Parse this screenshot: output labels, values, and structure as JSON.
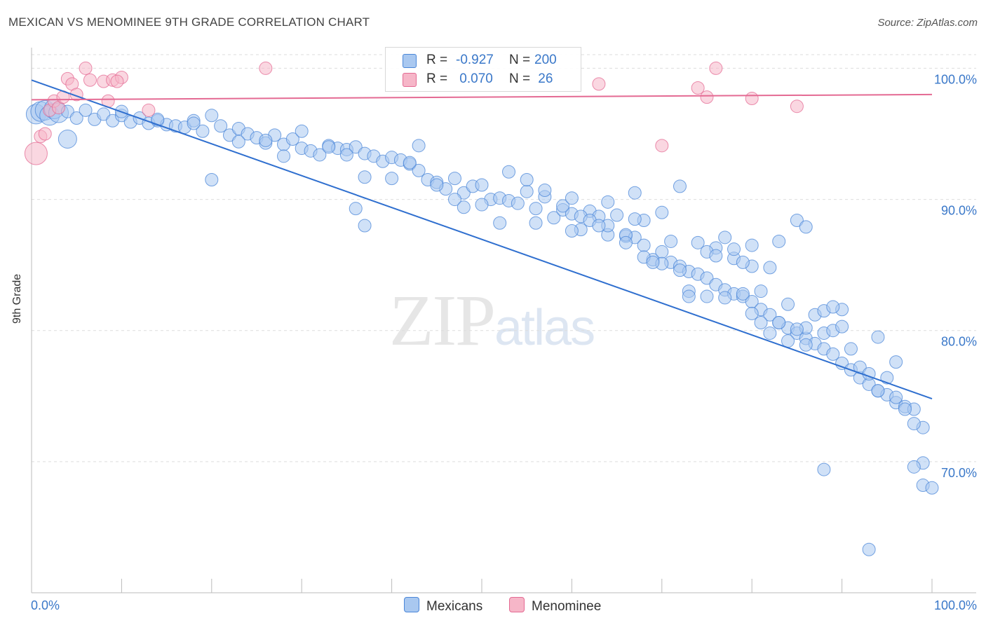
{
  "title": "MEXICAN VS MENOMINEE 9TH GRADE CORRELATION CHART",
  "source": "Source: ZipAtlas.com",
  "watermark": {
    "zip": "ZIP",
    "atlas": "atlas"
  },
  "legend_top": [
    {
      "r_label": "R = ",
      "r_value": "-0.927",
      "n_label": "N = ",
      "n_value": "200",
      "color": "#a9c8f0"
    },
    {
      "r_label": "R = ",
      "r_value": " 0.070",
      "n_label": "N = ",
      "n_value": " 26",
      "color": "#f6b6c8"
    }
  ],
  "chart_data": {
    "type": "scatter",
    "title": "MEXICAN VS MENOMINEE 9TH GRADE CORRELATION CHART",
    "xlabel": "",
    "ylabel": "9th Grade",
    "xlim": [
      0,
      100
    ],
    "ylim": [
      60,
      102
    ],
    "x_ticks": [
      "0.0%",
      "100.0%"
    ],
    "y_ticks": [
      {
        "value": 100,
        "label": "100.0%"
      },
      {
        "value": 90,
        "label": "90.0%"
      },
      {
        "value": 80,
        "label": "80.0%"
      },
      {
        "value": 70,
        "label": "70.0%"
      }
    ],
    "grid": true,
    "legend_position": "bottom-center",
    "series": [
      {
        "name": "Mexicans",
        "color": "#4a86d8",
        "fill": "#a9c8f0",
        "trend": {
          "x": [
            0,
            100
          ],
          "y": [
            99.1,
            74.8
          ]
        },
        "points": [
          [
            0.5,
            96.5
          ],
          [
            1,
            96.7
          ],
          [
            1.5,
            96.8
          ],
          [
            2,
            96.4
          ],
          [
            2.5,
            96.9
          ],
          [
            3,
            96.6
          ],
          [
            4,
            96.7
          ],
          [
            5,
            96.2
          ],
          [
            6,
            96.8
          ],
          [
            7,
            96.1
          ],
          [
            8,
            96.5
          ],
          [
            9,
            96.0
          ],
          [
            10,
            96.4
          ],
          [
            11,
            95.9
          ],
          [
            12,
            96.2
          ],
          [
            13,
            95.8
          ],
          [
            14,
            96.0
          ],
          [
            15,
            95.7
          ],
          [
            16,
            95.6
          ],
          [
            17,
            95.5
          ],
          [
            18,
            96.0
          ],
          [
            19,
            95.2
          ],
          [
            20,
            96.4
          ],
          [
            21,
            95.6
          ],
          [
            22,
            94.9
          ],
          [
            23,
            95.4
          ],
          [
            24,
            95.0
          ],
          [
            25,
            94.7
          ],
          [
            26,
            94.3
          ],
          [
            27,
            94.9
          ],
          [
            28,
            94.2
          ],
          [
            29,
            94.6
          ],
          [
            30,
            93.9
          ],
          [
            31,
            93.7
          ],
          [
            32,
            93.4
          ],
          [
            33,
            94.1
          ],
          [
            34,
            93.9
          ],
          [
            35,
            93.8
          ],
          [
            36,
            94.0
          ],
          [
            37,
            93.5
          ],
          [
            38,
            93.3
          ],
          [
            39,
            92.9
          ],
          [
            40,
            93.2
          ],
          [
            41,
            93.0
          ],
          [
            42,
            92.7
          ],
          [
            43,
            92.2
          ],
          [
            44,
            91.5
          ],
          [
            45,
            91.3
          ],
          [
            46,
            90.8
          ],
          [
            47,
            91.6
          ],
          [
            48,
            90.5
          ],
          [
            49,
            91.0
          ],
          [
            50,
            91.1
          ],
          [
            51,
            90.0
          ],
          [
            52,
            90.1
          ],
          [
            53,
            89.9
          ],
          [
            54,
            89.7
          ],
          [
            55,
            90.6
          ],
          [
            56,
            89.3
          ],
          [
            57,
            90.2
          ],
          [
            58,
            88.6
          ],
          [
            59,
            89.2
          ],
          [
            60,
            88.9
          ],
          [
            61,
            87.7
          ],
          [
            62,
            89.1
          ],
          [
            63,
            88.7
          ],
          [
            64,
            87.3
          ],
          [
            65,
            88.8
          ],
          [
            66,
            87.2
          ],
          [
            67,
            87.1
          ],
          [
            68,
            86.5
          ],
          [
            69,
            85.4
          ],
          [
            70,
            86.0
          ],
          [
            71,
            85.2
          ],
          [
            72,
            84.9
          ],
          [
            73,
            84.5
          ],
          [
            74,
            84.3
          ],
          [
            75,
            84.0
          ],
          [
            76,
            83.5
          ],
          [
            77,
            83.1
          ],
          [
            78,
            82.8
          ],
          [
            79,
            82.6
          ],
          [
            80,
            82.2
          ],
          [
            81,
            81.6
          ],
          [
            82,
            81.2
          ],
          [
            83,
            80.6
          ],
          [
            84,
            80.2
          ],
          [
            85,
            79.8
          ],
          [
            86,
            79.4
          ],
          [
            87,
            79.0
          ],
          [
            88,
            78.6
          ],
          [
            89,
            78.2
          ],
          [
            90,
            77.5
          ],
          [
            91,
            77.0
          ],
          [
            92,
            76.4
          ],
          [
            93,
            75.9
          ],
          [
            94,
            75.4
          ],
          [
            95,
            75.1
          ],
          [
            96,
            74.5
          ],
          [
            97,
            74.2
          ],
          [
            4,
            94.6
          ],
          [
            10,
            96.7
          ],
          [
            14,
            96.1
          ],
          [
            18,
            95.8
          ],
          [
            23,
            94.4
          ],
          [
            26,
            94.5
          ],
          [
            28,
            93.3
          ],
          [
            30,
            95.2
          ],
          [
            33,
            94.0
          ],
          [
            35,
            93.4
          ],
          [
            37,
            91.7
          ],
          [
            40,
            91.6
          ],
          [
            42,
            92.8
          ],
          [
            45,
            91.1
          ],
          [
            47,
            90.0
          ],
          [
            48,
            89.4
          ],
          [
            50,
            89.6
          ],
          [
            53,
            92.1
          ],
          [
            55,
            91.5
          ],
          [
            57,
            90.7
          ],
          [
            59,
            89.5
          ],
          [
            60,
            90.1
          ],
          [
            61,
            88.7
          ],
          [
            64,
            89.8
          ],
          [
            66,
            87.3
          ],
          [
            67,
            90.5
          ],
          [
            68,
            88.4
          ],
          [
            70,
            89.0
          ],
          [
            72,
            91.0
          ],
          [
            74,
            86.7
          ],
          [
            76,
            86.3
          ],
          [
            78,
            85.5
          ],
          [
            80,
            84.9
          ],
          [
            81,
            83.0
          ],
          [
            82,
            84.8
          ],
          [
            84,
            82.0
          ],
          [
            86,
            80.2
          ],
          [
            88,
            79.8
          ],
          [
            89,
            80.0
          ],
          [
            90,
            81.6
          ],
          [
            94,
            79.5
          ],
          [
            96,
            77.6
          ],
          [
            98,
            74.0
          ],
          [
            99,
            72.6
          ],
          [
            60,
            87.6
          ],
          [
            62,
            88.4
          ],
          [
            64,
            88.0
          ],
          [
            66,
            86.7
          ],
          [
            68,
            85.6
          ],
          [
            70,
            85.1
          ],
          [
            72,
            84.6
          ],
          [
            73,
            83.0
          ],
          [
            75,
            82.6
          ],
          [
            77,
            82.5
          ],
          [
            79,
            82.8
          ],
          [
            80,
            81.3
          ],
          [
            81,
            80.6
          ],
          [
            82,
            79.8
          ],
          [
            83,
            80.6
          ],
          [
            84,
            79.2
          ],
          [
            85,
            80.1
          ],
          [
            86,
            78.9
          ],
          [
            87,
            81.2
          ],
          [
            88,
            81.5
          ],
          [
            89,
            81.8
          ],
          [
            90,
            80.3
          ],
          [
            91,
            78.6
          ],
          [
            92,
            77.2
          ],
          [
            93,
            76.7
          ],
          [
            94,
            75.4
          ],
          [
            95,
            76.4
          ],
          [
            96,
            74.9
          ],
          [
            97,
            74.0
          ],
          [
            98,
            72.9
          ],
          [
            99,
            69.9
          ],
          [
            98,
            69.6
          ],
          [
            99,
            68.2
          ],
          [
            100,
            68.0
          ],
          [
            93,
            63.3
          ],
          [
            88,
            69.4
          ],
          [
            73,
            82.6
          ],
          [
            75,
            86.0
          ],
          [
            76,
            85.7
          ],
          [
            77,
            87.1
          ],
          [
            78,
            86.2
          ],
          [
            79,
            85.2
          ],
          [
            80,
            86.5
          ],
          [
            83,
            86.8
          ],
          [
            85,
            88.4
          ],
          [
            86,
            87.9
          ],
          [
            20,
            91.5
          ],
          [
            37,
            88.0
          ],
          [
            36,
            89.3
          ],
          [
            43,
            94.1
          ],
          [
            52,
            88.2
          ],
          [
            63,
            88.0
          ],
          [
            67,
            88.5
          ],
          [
            69,
            85.2
          ],
          [
            56,
            88.2
          ],
          [
            71,
            86.8
          ]
        ]
      },
      {
        "name": "Menominee",
        "color": "#e46a93",
        "fill": "#f6b6c8",
        "trend": {
          "x": [
            0,
            100
          ],
          "y": [
            97.6,
            98.0
          ]
        },
        "points": [
          [
            0.5,
            93.5
          ],
          [
            1,
            94.8
          ],
          [
            1.5,
            95.0
          ],
          [
            2,
            96.8
          ],
          [
            2.5,
            97.5
          ],
          [
            3,
            97.0
          ],
          [
            3.5,
            97.8
          ],
          [
            4,
            99.2
          ],
          [
            4.5,
            98.8
          ],
          [
            5,
            98.0
          ],
          [
            6,
            100.0
          ],
          [
            6.5,
            99.1
          ],
          [
            8,
            99.0
          ],
          [
            8.5,
            97.5
          ],
          [
            9,
            99.1
          ],
          [
            10,
            99.3
          ],
          [
            13,
            96.8
          ],
          [
            26,
            100.0
          ],
          [
            63,
            98.8
          ],
          [
            70,
            94.1
          ],
          [
            74,
            98.5
          ],
          [
            75,
            97.8
          ],
          [
            76,
            100.0
          ],
          [
            80,
            97.7
          ],
          [
            85,
            97.1
          ],
          [
            9.5,
            99.0
          ]
        ]
      }
    ]
  }
}
